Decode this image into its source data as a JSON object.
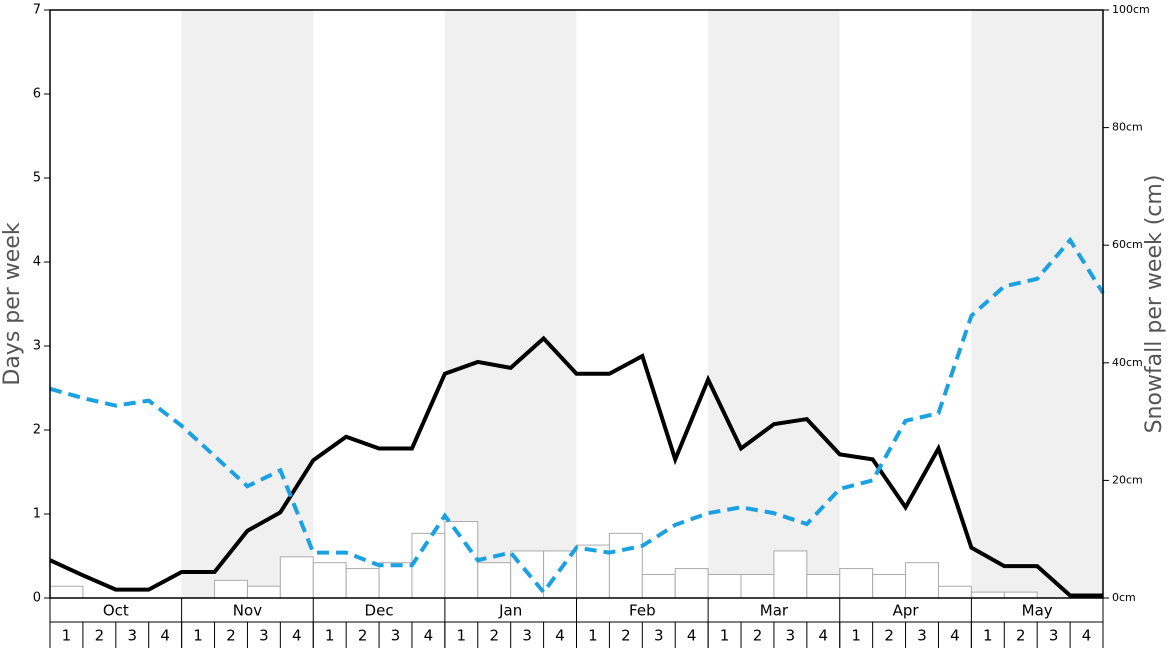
{
  "chart_data": {
    "type": "line",
    "y_label": "Days per week",
    "y2_label": "Snowfall per week (cm)",
    "months": [
      "Oct",
      "Nov",
      "Dec",
      "Jan",
      "Feb",
      "Mar",
      "Apr",
      "May"
    ],
    "weeks": [
      "1",
      "2",
      "3",
      "4",
      "1",
      "2",
      "3",
      "4",
      "1",
      "2",
      "3",
      "4",
      "1",
      "2",
      "3",
      "4",
      "1",
      "2",
      "3",
      "4",
      "1",
      "2",
      "3",
      "4",
      "1",
      "2",
      "3",
      "4",
      "1",
      "2",
      "3",
      "4"
    ],
    "x": [
      0,
      1,
      2,
      3,
      4,
      5,
      6,
      7,
      8,
      9,
      10,
      11,
      12,
      13,
      14,
      15,
      16,
      17,
      18,
      19,
      20,
      21,
      22,
      23,
      24,
      25,
      26,
      27,
      28,
      29,
      30,
      31,
      32
    ],
    "xlim": [
      0,
      32
    ],
    "ylim": [
      0,
      7
    ],
    "yticks": [
      0,
      1,
      2,
      3,
      4,
      5,
      6,
      7
    ],
    "y2lim": [
      0,
      100
    ],
    "y2ticks": [
      {
        "value": 0,
        "label": "0cm"
      },
      {
        "value": 20,
        "label": "20cm"
      },
      {
        "value": 40,
        "label": "40cm"
      },
      {
        "value": 60,
        "label": "60cm"
      },
      {
        "value": 80,
        "label": "80cm"
      },
      {
        "value": 100,
        "label": "100cm"
      }
    ],
    "bars": {
      "axis": "y2",
      "color": "#ffffff",
      "values": [
        2,
        0,
        0,
        0,
        0,
        3,
        2,
        7,
        6,
        5,
        6,
        11,
        13,
        6,
        8,
        8,
        9,
        11,
        4,
        5,
        4,
        4,
        8,
        4,
        5,
        4,
        6,
        2,
        1,
        1,
        0,
        0
      ]
    },
    "series": [
      {
        "color": "#000000",
        "dashed": false,
        "values": [
          0.45,
          0.27,
          0.1,
          0.1,
          0.31,
          0.31,
          0.8,
          1.02,
          1.64,
          1.92,
          1.78,
          1.78,
          2.67,
          2.81,
          2.74,
          3.09,
          2.67,
          2.67,
          2.88,
          1.65,
          2.6,
          1.78,
          2.07,
          2.13,
          1.71,
          1.65,
          1.08,
          1.78,
          0.6,
          0.38,
          0.38,
          0.03,
          0.03
        ]
      },
      {
        "color": "#1ba1e2",
        "dashed": true,
        "values": [
          2.49,
          2.38,
          2.29,
          2.35,
          2.05,
          1.69,
          1.33,
          1.52,
          0.54,
          0.54,
          0.39,
          0.39,
          0.98,
          0.45,
          0.54,
          0.07,
          0.6,
          0.54,
          0.62,
          0.87,
          1.01,
          1.08,
          1.01,
          0.88,
          1.3,
          1.4,
          2.11,
          2.2,
          3.36,
          3.71,
          3.8,
          4.26,
          3.63
        ]
      }
    ]
  }
}
